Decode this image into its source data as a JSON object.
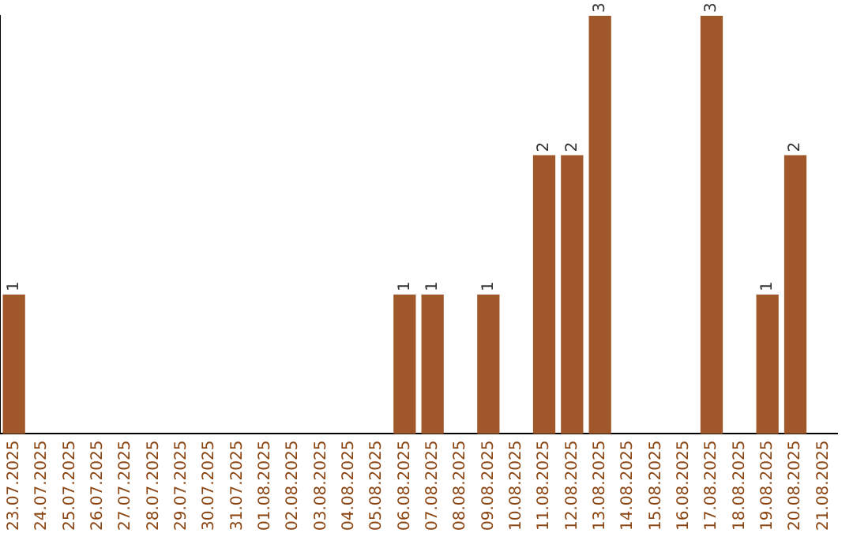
{
  "chart_data": {
    "type": "bar",
    "categories": [
      "23.07.2025",
      "24.07.2025",
      "25.07.2025",
      "26.07.2025",
      "27.07.2025",
      "28.07.2025",
      "29.07.2025",
      "30.07.2025",
      "31.07.2025",
      "01.08.2025",
      "02.08.2025",
      "03.08.2025",
      "04.08.2025",
      "05.08.2025",
      "06.08.2025",
      "07.08.2025",
      "08.08.2025",
      "09.08.2025",
      "10.08.2025",
      "11.08.2025",
      "12.08.2025",
      "13.08.2025",
      "14.08.2025",
      "15.08.2025",
      "16.08.2025",
      "17.08.2025",
      "18.08.2025",
      "19.08.2025",
      "20.08.2025",
      "21.08.2025"
    ],
    "values": [
      1,
      null,
      null,
      null,
      null,
      null,
      null,
      null,
      null,
      null,
      null,
      null,
      null,
      null,
      1,
      1,
      null,
      1,
      null,
      2,
      2,
      3,
      null,
      null,
      null,
      3,
      null,
      1,
      2,
      null
    ],
    "color": "#a0572a",
    "data_labels": true,
    "grid": false,
    "legend": false,
    "tick_labels": "x"
  }
}
